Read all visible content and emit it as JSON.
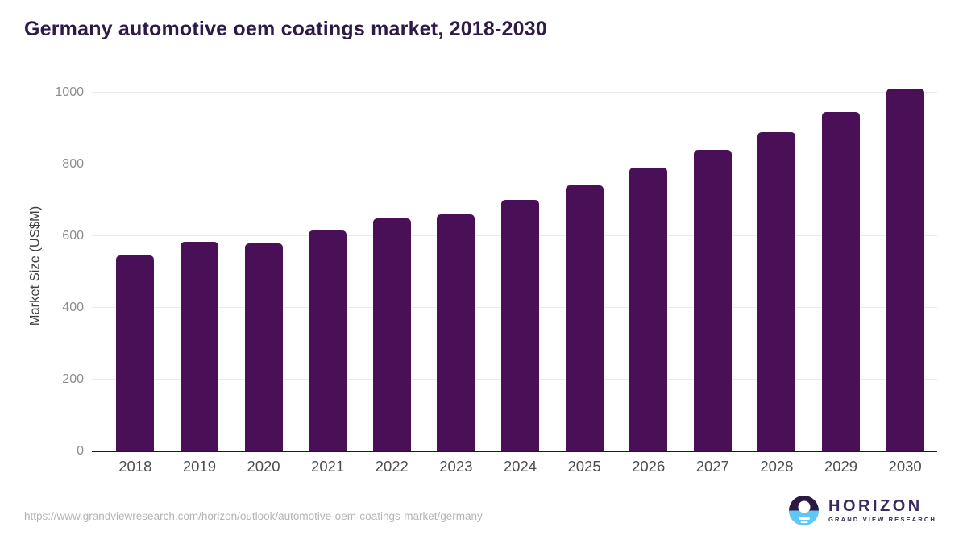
{
  "chart": {
    "title": "Germany automotive oem coatings market, 2018-2030",
    "ylabel": "Market Size (US$M)"
  },
  "chart_data": {
    "type": "bar",
    "title": "Germany automotive oem coatings market, 2018-2030",
    "categories": [
      "2018",
      "2019",
      "2020",
      "2021",
      "2022",
      "2023",
      "2024",
      "2025",
      "2026",
      "2027",
      "2028",
      "2029",
      "2030"
    ],
    "values": [
      545,
      585,
      580,
      615,
      650,
      660,
      700,
      740,
      790,
      840,
      890,
      945,
      1010
    ],
    "xlabel": "",
    "ylabel": "Market Size (US$M)",
    "yticks": [
      0,
      200,
      400,
      600,
      800,
      1000
    ],
    "ylim": [
      0,
      1033
    ],
    "grid": "horizontal-only",
    "legend": "none",
    "bar_color": "#491058"
  },
  "colors": {
    "title_text": "#2e1a47",
    "bar": "#491058",
    "gridline": "#eaeaea",
    "axis_line": "#1d1d1d",
    "y_tick_text": "#8c8c8c",
    "x_tick_text": "#4d4d4d",
    "source_text": "#b4b4b4",
    "logo_purple": "#2d1843",
    "logo_blue": "#5ec8f4",
    "logo_text": "#3a2a5e"
  },
  "footer": {
    "source_url": "https://www.grandviewresearch.com/horizon/outlook/automotive-oem-coatings-market/germany",
    "logo": {
      "title": "HORIZON",
      "subtitle": "GRAND VIEW RESEARCH"
    }
  }
}
